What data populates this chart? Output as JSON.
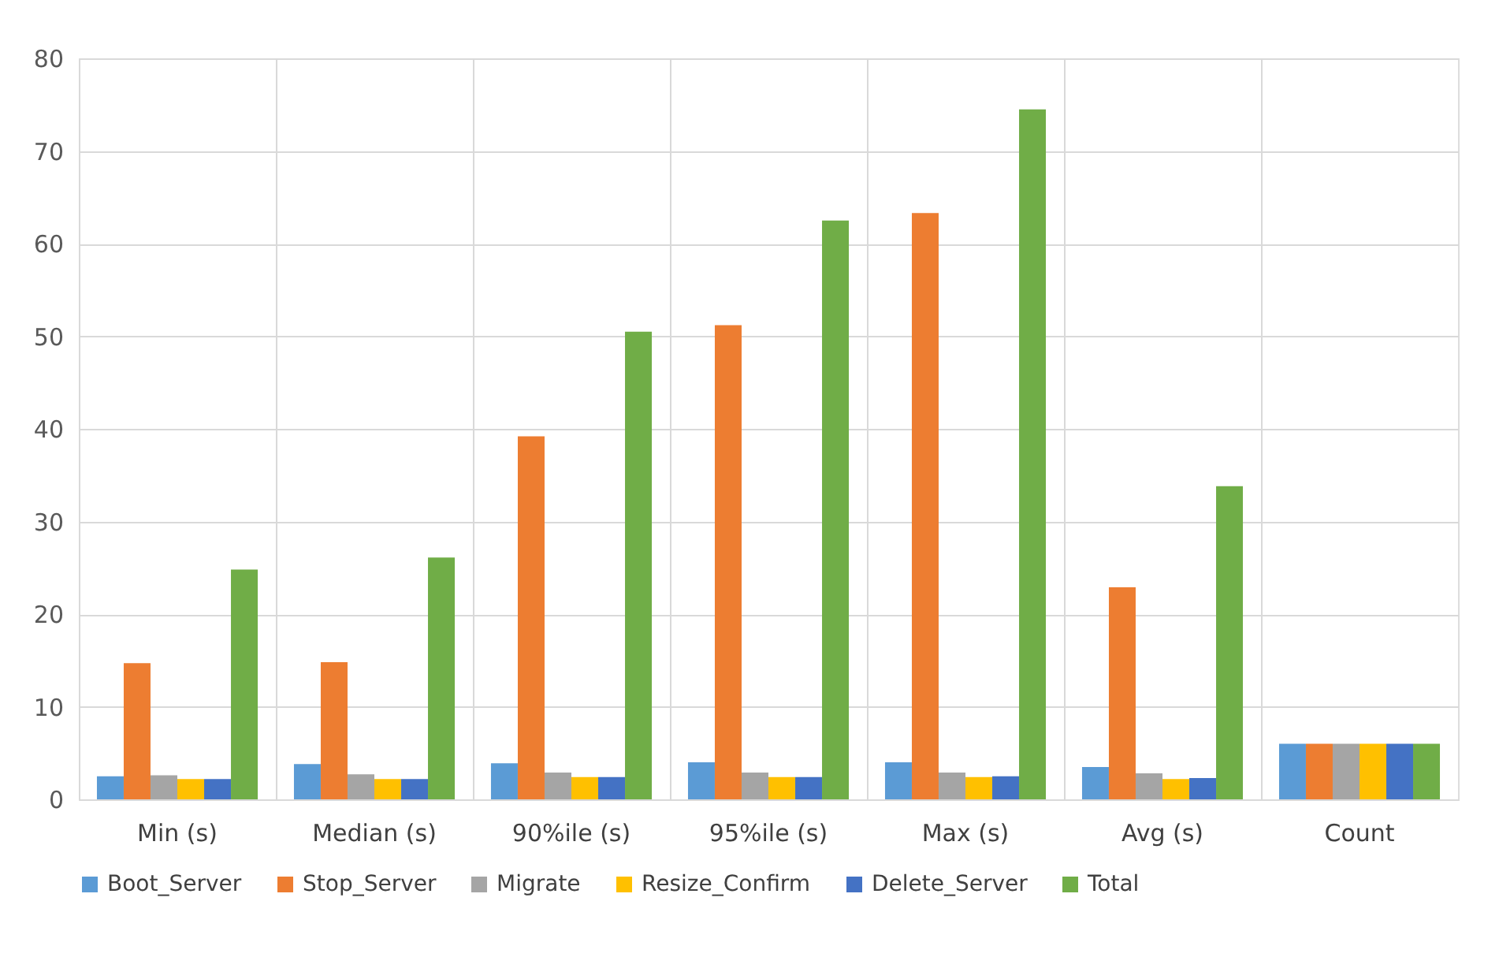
{
  "chart_data": {
    "type": "bar",
    "categories": [
      "Min (s)",
      "Median (s)",
      "90%ile (s)",
      "95%ile (s)",
      "Max (s)",
      "Avg (s)",
      "Count"
    ],
    "series": [
      {
        "name": "Boot_Server",
        "color": "#5b9bd5",
        "values": [
          2.5,
          3.8,
          3.9,
          4.0,
          4.0,
          3.5,
          6
        ]
      },
      {
        "name": "Stop_Server",
        "color": "#ed7d31",
        "values": [
          14.7,
          14.8,
          39.2,
          51.2,
          63.3,
          22.9,
          6
        ]
      },
      {
        "name": "Migrate",
        "color": "#a5a5a5",
        "values": [
          2.6,
          2.7,
          2.9,
          2.9,
          2.9,
          2.8,
          6
        ]
      },
      {
        "name": "Resize_Confirm",
        "color": "#ffc000",
        "values": [
          2.2,
          2.2,
          2.4,
          2.4,
          2.4,
          2.2,
          6
        ]
      },
      {
        "name": "Delete_Server",
        "color": "#4472c4",
        "values": [
          2.2,
          2.2,
          2.4,
          2.4,
          2.5,
          2.3,
          6
        ]
      },
      {
        "name": "Total",
        "color": "#70ad47",
        "values": [
          24.8,
          26.1,
          50.5,
          62.5,
          74.5,
          33.8,
          6
        ]
      }
    ],
    "ylim": [
      0,
      80
    ],
    "yticks": [
      0,
      10,
      20,
      30,
      40,
      50,
      60,
      70,
      80
    ],
    "grid": true,
    "legend": "bottom"
  }
}
